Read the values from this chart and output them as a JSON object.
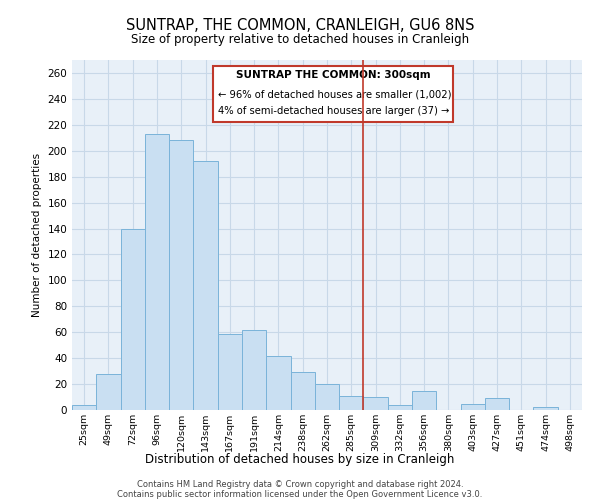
{
  "title": "SUNTRAP, THE COMMON, CRANLEIGH, GU6 8NS",
  "subtitle": "Size of property relative to detached houses in Cranleigh",
  "xlabel": "Distribution of detached houses by size in Cranleigh",
  "ylabel": "Number of detached properties",
  "bar_labels": [
    "25sqm",
    "49sqm",
    "72sqm",
    "96sqm",
    "120sqm",
    "143sqm",
    "167sqm",
    "191sqm",
    "214sqm",
    "238sqm",
    "262sqm",
    "285sqm",
    "309sqm",
    "332sqm",
    "356sqm",
    "380sqm",
    "403sqm",
    "427sqm",
    "451sqm",
    "474sqm",
    "498sqm"
  ],
  "bar_values": [
    4,
    28,
    140,
    213,
    208,
    192,
    59,
    62,
    42,
    29,
    20,
    11,
    10,
    4,
    15,
    0,
    5,
    9,
    0,
    2,
    0
  ],
  "bar_color": "#c9dff2",
  "bar_edge_color": "#7ab3d9",
  "vline_color": "#c0392b",
  "ylim": [
    0,
    270
  ],
  "yticks": [
    0,
    20,
    40,
    60,
    80,
    100,
    120,
    140,
    160,
    180,
    200,
    220,
    240,
    260
  ],
  "annotation_title": "SUNTRAP THE COMMON: 300sqm",
  "annotation_line1": "← 96% of detached houses are smaller (1,002)",
  "annotation_line2": "4% of semi-detached houses are larger (37) →",
  "annotation_box_color": "#ffffff",
  "annotation_box_edge": "#c0392b",
  "footer_line1": "Contains HM Land Registry data © Crown copyright and database right 2024.",
  "footer_line2": "Contains public sector information licensed under the Open Government Licence v3.0.",
  "bg_color": "#e8f0f8",
  "fig_bg_color": "#ffffff",
  "grid_color": "#c8d8e8"
}
